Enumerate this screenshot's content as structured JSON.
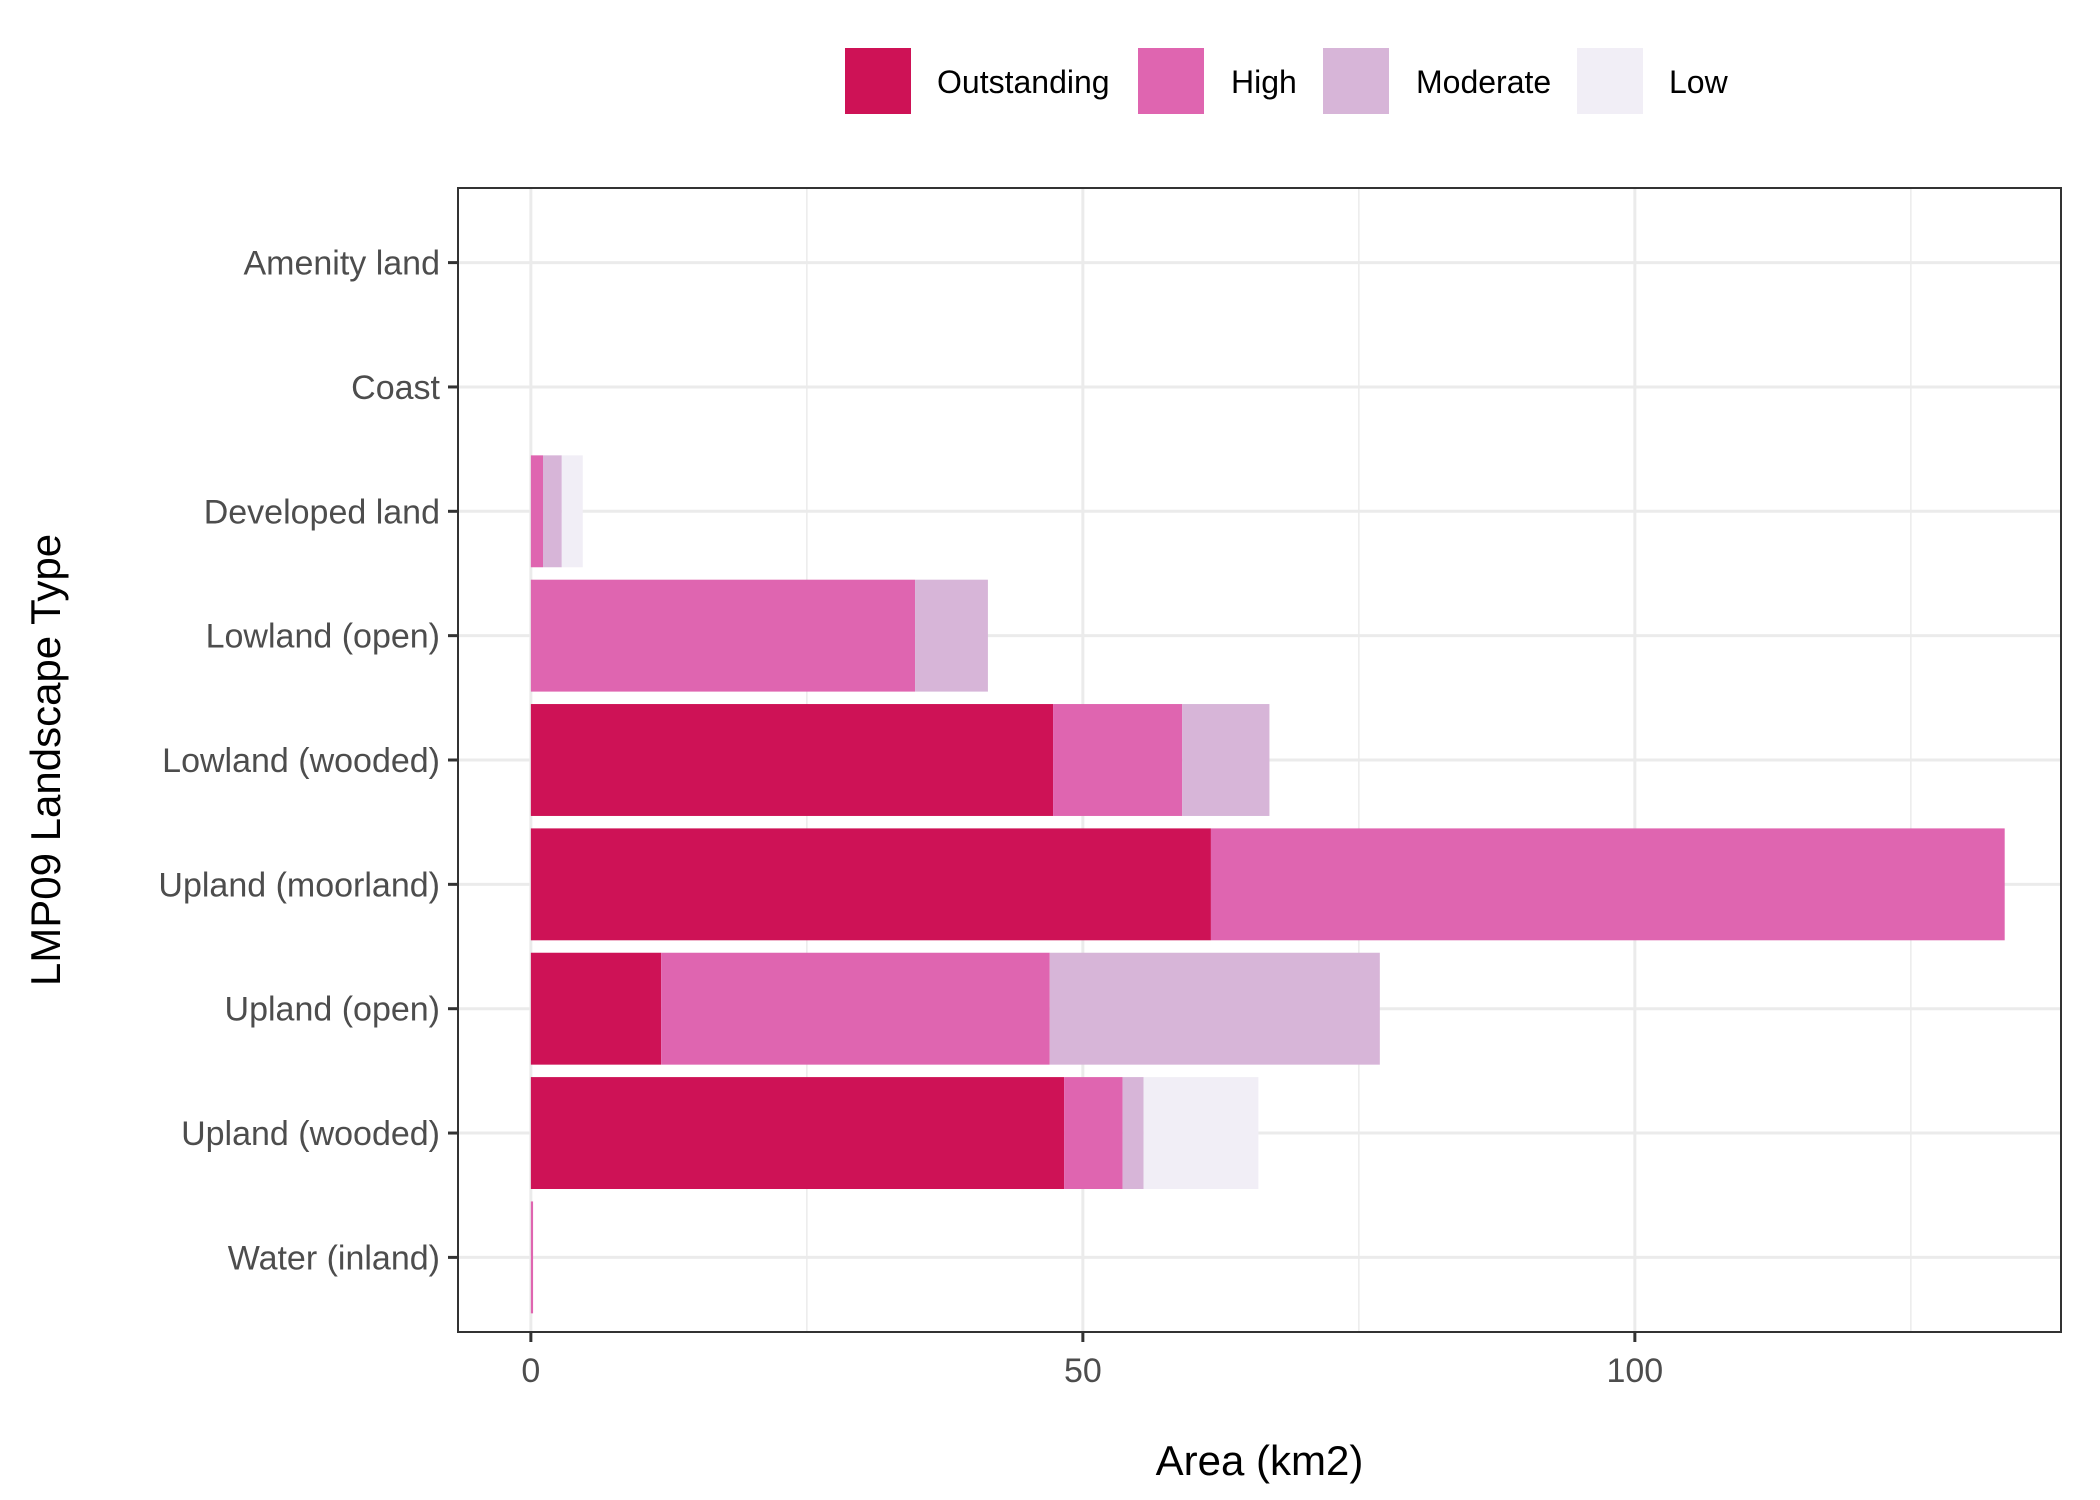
{
  "chart_data": {
    "type": "bar",
    "orientation": "horizontal",
    "stacked": true,
    "title": "",
    "xlabel": "Area (km2)",
    "ylabel": "LMP09 Landscape Type",
    "xlim": [
      -6.6,
      138.6
    ],
    "xticks": [
      0,
      50,
      100
    ],
    "grid": true,
    "legend_position": "top",
    "categories": [
      "Amenity land",
      "Coast",
      "Developed land",
      "Lowland (open)",
      "Lowland (wooded)",
      "Upland (moorland)",
      "Upland (open)",
      "Upland (wooded)",
      "Water (inland)"
    ],
    "series": [
      {
        "name": "Outstanding",
        "color": "#CE1256",
        "values": [
          0,
          0,
          0,
          0,
          47.3,
          61.6,
          11.8,
          48.3,
          0
        ]
      },
      {
        "name": "High",
        "color": "#DF65B0",
        "values": [
          0,
          0,
          1.1,
          34.8,
          11.7,
          71.9,
          35.2,
          5.3,
          0.2
        ]
      },
      {
        "name": "Moderate",
        "color": "#D7B5D8",
        "values": [
          0,
          0,
          1.7,
          6.6,
          7.9,
          0,
          29.9,
          1.9,
          0
        ]
      },
      {
        "name": "Low",
        "color": "#F1EEF6",
        "values": [
          0,
          0,
          1.9,
          0,
          0,
          0,
          0,
          10.4,
          0
        ]
      }
    ]
  }
}
